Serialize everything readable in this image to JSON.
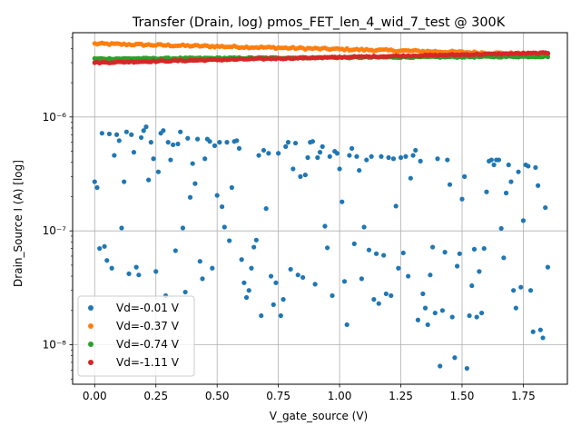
{
  "chart_data": {
    "type": "scatter",
    "title": "Transfer (Drain, log) pmos_FET_len_4_wid_7_test @ 300K",
    "xlabel": "V_gate_source (V)",
    "ylabel": "Drain_Source I (A) [log]",
    "xlim": [
      -0.09,
      1.93
    ],
    "ylim": [
      4.5e-09,
      5.5e-06
    ],
    "yscale": "log",
    "grid": true,
    "legend_position": "lower-left",
    "x_ticks": [
      {
        "value": 0.0,
        "label": "0.00"
      },
      {
        "value": 0.25,
        "label": "0.25"
      },
      {
        "value": 0.5,
        "label": "0.50"
      },
      {
        "value": 0.75,
        "label": "0.75"
      },
      {
        "value": 1.0,
        "label": "1.00"
      },
      {
        "value": 1.25,
        "label": "1.25"
      },
      {
        "value": 1.5,
        "label": "1.50"
      },
      {
        "value": 1.75,
        "label": "1.75"
      }
    ],
    "y_ticks": [
      {
        "value": 1e-08,
        "label": "10⁻⁸"
      },
      {
        "value": 1e-07,
        "label": "10⁻⁷"
      },
      {
        "value": 1e-06,
        "label": "10⁻⁶"
      }
    ],
    "series": [
      {
        "name": "Vd=-0.01 V",
        "color": "#1f77b4",
        "x_range": [
          0.0,
          1.85
        ],
        "points": [
          [
            0.0,
            2.7e-07
          ],
          [
            0.01,
            2.4e-07
          ],
          [
            0.02,
            7e-08
          ],
          [
            0.03,
            7.2e-07
          ],
          [
            0.04,
            7.3e-08
          ],
          [
            0.05,
            5.5e-08
          ],
          [
            0.06,
            7.1e-07
          ],
          [
            0.07,
            4.7e-08
          ],
          [
            0.08,
            4.6e-07
          ],
          [
            0.09,
            7e-07
          ],
          [
            0.1,
            6.2e-07
          ],
          [
            0.11,
            1.06e-07
          ],
          [
            0.12,
            2.7e-07
          ],
          [
            0.13,
            7.4e-07
          ],
          [
            0.14,
            4.2e-08
          ],
          [
            0.15,
            7e-07
          ],
          [
            0.16,
            4.9e-07
          ],
          [
            0.17,
            4.8e-08
          ],
          [
            0.18,
            4.1e-08
          ],
          [
            0.19,
            6.6e-07
          ],
          [
            0.2,
            7.6e-07
          ],
          [
            0.21,
            8.2e-07
          ],
          [
            0.22,
            2.8e-07
          ],
          [
            0.23,
            6e-07
          ],
          [
            0.24,
            4.3e-07
          ],
          [
            0.25,
            4.4e-08
          ],
          [
            0.26,
            3.3e-07
          ],
          [
            0.27,
            7.2e-07
          ],
          [
            0.28,
            7.6e-07
          ],
          [
            0.29,
            2.7e-08
          ],
          [
            0.3,
            6e-07
          ],
          [
            0.31,
            4.2e-07
          ],
          [
            0.32,
            5.7e-07
          ],
          [
            0.33,
            6.7e-08
          ],
          [
            0.34,
            5.8e-07
          ],
          [
            0.35,
            7.4e-07
          ],
          [
            0.36,
            1.06e-07
          ],
          [
            0.37,
            2.9e-08
          ],
          [
            0.38,
            6.5e-07
          ],
          [
            0.39,
            1.97e-07
          ],
          [
            0.4,
            3.9e-07
          ],
          [
            0.41,
            2.6e-07
          ],
          [
            0.42,
            6.4e-07
          ],
          [
            0.43,
            5.4e-08
          ],
          [
            0.44,
            3.8e-08
          ],
          [
            0.45,
            4.3e-07
          ],
          [
            0.46,
            6.4e-07
          ],
          [
            0.47,
            6.1e-07
          ],
          [
            0.48,
            4.7e-08
          ],
          [
            0.49,
            5.6e-07
          ],
          [
            0.5,
            2.05e-07
          ],
          [
            0.51,
            6e-07
          ],
          [
            0.52,
            1.63e-07
          ],
          [
            0.53,
            1.08e-07
          ],
          [
            0.54,
            6e-07
          ],
          [
            0.55,
            8.2e-08
          ],
          [
            0.56,
            2.4e-07
          ],
          [
            0.57,
            6.1e-07
          ],
          [
            0.58,
            6.2e-07
          ],
          [
            0.59,
            5.3e-07
          ],
          [
            0.6,
            5.6e-08
          ],
          [
            0.61,
            3.5e-08
          ],
          [
            0.62,
            2.6e-08
          ],
          [
            0.63,
            3e-08
          ],
          [
            0.64,
            4.7e-08
          ],
          [
            0.65,
            7.2e-08
          ],
          [
            0.66,
            8.3e-08
          ],
          [
            0.67,
            4.6e-07
          ],
          [
            0.68,
            1.8e-08
          ],
          [
            0.69,
            5.1e-07
          ],
          [
            0.7,
            1.57e-07
          ],
          [
            0.71,
            4.8e-07
          ],
          [
            0.72,
            4e-08
          ],
          [
            0.73,
            2.25e-08
          ],
          [
            0.74,
            3.5e-08
          ],
          [
            0.75,
            4.8e-07
          ],
          [
            0.76,
            1.8e-08
          ],
          [
            0.77,
            2.5e-08
          ],
          [
            0.78,
            5.5e-07
          ],
          [
            0.79,
            6e-07
          ],
          [
            0.8,
            4.6e-08
          ],
          [
            0.81,
            3.5e-07
          ],
          [
            0.82,
            5.9e-07
          ],
          [
            0.83,
            4.1e-08
          ],
          [
            0.84,
            3e-07
          ],
          [
            0.85,
            3.9e-08
          ],
          [
            0.86,
            3.1e-07
          ],
          [
            0.87,
            4.4e-07
          ],
          [
            0.88,
            6e-07
          ],
          [
            0.89,
            6.1e-07
          ],
          [
            0.9,
            3.4e-08
          ],
          [
            0.91,
            4.4e-07
          ],
          [
            0.92,
            4.9e-07
          ],
          [
            0.93,
            5.5e-07
          ],
          [
            0.94,
            1.1e-07
          ],
          [
            0.95,
            7.1e-08
          ],
          [
            0.96,
            4.5e-07
          ],
          [
            0.97,
            2.7e-08
          ],
          [
            0.98,
            5e-07
          ],
          [
            0.99,
            4.8e-07
          ],
          [
            1.0,
            3.5e-07
          ],
          [
            1.01,
            1.8e-07
          ],
          [
            1.02,
            3.6e-08
          ],
          [
            1.03,
            1.5e-08
          ],
          [
            1.04,
            4.6e-07
          ],
          [
            1.05,
            5.3e-07
          ],
          [
            1.06,
            7.7e-08
          ],
          [
            1.07,
            4.5e-07
          ],
          [
            1.08,
            3.4e-07
          ],
          [
            1.09,
            3.8e-08
          ],
          [
            1.1,
            1.08e-07
          ],
          [
            1.11,
            4.2e-07
          ],
          [
            1.12,
            6.8e-08
          ],
          [
            1.13,
            4.5e-07
          ],
          [
            1.14,
            2.5e-08
          ],
          [
            1.15,
            6.3e-08
          ],
          [
            1.16,
            2.3e-08
          ],
          [
            1.17,
            4.5e-07
          ],
          [
            1.18,
            6.1e-08
          ],
          [
            1.19,
            2.8e-08
          ],
          [
            1.2,
            4.4e-07
          ],
          [
            1.21,
            2.7e-08
          ],
          [
            1.22,
            4.3e-07
          ],
          [
            1.23,
            1.65e-07
          ],
          [
            1.24,
            4.7e-08
          ],
          [
            1.25,
            4.4e-07
          ],
          [
            1.26,
            6.4e-08
          ],
          [
            1.27,
            4.5e-07
          ],
          [
            1.28,
            4e-08
          ],
          [
            1.29,
            2.9e-07
          ],
          [
            1.3,
            4.6e-07
          ],
          [
            1.31,
            5.1e-07
          ],
          [
            1.32,
            1.65e-08
          ],
          [
            1.33,
            4.1e-07
          ],
          [
            1.34,
            2.8e-08
          ],
          [
            1.35,
            2.1e-08
          ],
          [
            1.36,
            1.5e-08
          ],
          [
            1.37,
            4.1e-08
          ],
          [
            1.38,
            7.2e-08
          ],
          [
            1.39,
            1.9e-08
          ],
          [
            1.4,
            4.3e-07
          ],
          [
            1.41,
            6.5e-09
          ],
          [
            1.42,
            2e-08
          ],
          [
            1.43,
            6.5e-08
          ],
          [
            1.44,
            4.2e-07
          ],
          [
            1.45,
            2.55e-07
          ],
          [
            1.46,
            1.75e-08
          ],
          [
            1.47,
            7.7e-09
          ],
          [
            1.48,
            4.9e-08
          ],
          [
            1.49,
            6.3e-08
          ],
          [
            1.5,
            1.9e-07
          ],
          [
            1.51,
            3e-07
          ],
          [
            1.52,
            6.2e-09
          ],
          [
            1.53,
            1.8e-08
          ],
          [
            1.54,
            3.3e-08
          ],
          [
            1.55,
            6.9e-08
          ],
          [
            1.56,
            1.75e-08
          ],
          [
            1.57,
            4.4e-08
          ],
          [
            1.58,
            1.9e-08
          ],
          [
            1.59,
            7e-08
          ],
          [
            1.6,
            2.2e-07
          ],
          [
            1.61,
            4.1e-07
          ],
          [
            1.62,
            4.2e-07
          ],
          [
            1.63,
            3.8e-07
          ],
          [
            1.64,
            4.2e-07
          ],
          [
            1.65,
            4.2e-07
          ],
          [
            1.66,
            1.05e-07
          ],
          [
            1.67,
            5.8e-08
          ],
          [
            1.68,
            2.15e-07
          ],
          [
            1.69,
            3.8e-07
          ],
          [
            1.7,
            2.7e-07
          ],
          [
            1.71,
            3e-08
          ],
          [
            1.72,
            2.1e-08
          ],
          [
            1.73,
            3.3e-07
          ],
          [
            1.74,
            3.2e-08
          ],
          [
            1.75,
            1.23e-07
          ],
          [
            1.76,
            3.8e-07
          ],
          [
            1.77,
            3.7e-07
          ],
          [
            1.78,
            3e-08
          ],
          [
            1.79,
            1.3e-08
          ],
          [
            1.8,
            3.6e-07
          ],
          [
            1.81,
            2.5e-07
          ],
          [
            1.82,
            1.35e-08
          ],
          [
            1.83,
            1.15e-08
          ],
          [
            1.84,
            1.6e-07
          ],
          [
            1.85,
            4.8e-08
          ]
        ]
      },
      {
        "name": "Vd=-0.37 V",
        "color": "#ff7f0e",
        "x_range": [
          0.0,
          1.85
        ],
        "y_start": 4.4e-06,
        "y_end": 3.55e-06,
        "jitter": 0.02
      },
      {
        "name": "Vd=-0.74 V",
        "color": "#2ca02c",
        "x_range": [
          0.0,
          1.85
        ],
        "y_start": 3.25e-06,
        "y_end": 3.4e-06,
        "jitter": 0.012
      },
      {
        "name": "Vd=-1.11 V",
        "color": "#d62728",
        "x_range": [
          0.0,
          1.85
        ],
        "y_start": 3e-06,
        "y_end": 3.65e-06,
        "jitter": 0.012
      }
    ]
  }
}
